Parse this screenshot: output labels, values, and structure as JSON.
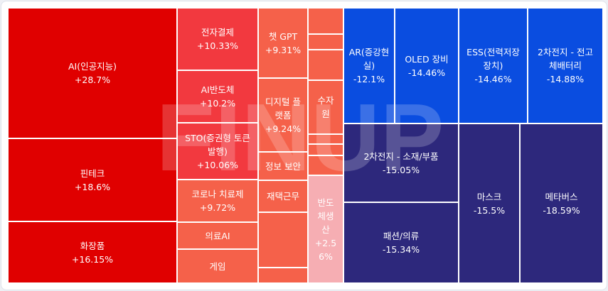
{
  "colors": {
    "up_strong": "#e00000",
    "up_mid": "#f2393f",
    "up_light": "#f5614a",
    "up_pale": "#f6aeb3",
    "down_blue": "#0a4de0",
    "down_navy": "#2d287c",
    "border": "#ffffff",
    "watermark": "#ffffff"
  },
  "watermark_text": "FINUP",
  "chart_data": {
    "type": "treemap",
    "title": "",
    "unit": "%",
    "tiles": [
      {
        "name": "AI(인공지능)",
        "value_label": "+28.7%",
        "value": 28.7
      },
      {
        "name": "핀테크",
        "value_label": "+18.6%",
        "value": 18.6
      },
      {
        "name": "화장품",
        "value_label": "+16.15%",
        "value": 16.15
      },
      {
        "name": "전자결제",
        "value_label": "+10.33%",
        "value": 10.33
      },
      {
        "name": "AI반도체",
        "value_label": "+10.2%",
        "value": 10.2
      },
      {
        "name": "STO(증권형 토큰\n발행)",
        "value_label": "+10.06%",
        "value": 10.06
      },
      {
        "name": "코로나 치료제",
        "value_label": "+9.72%",
        "value": 9.72
      },
      {
        "name": "의료AI",
        "value_label": "",
        "value": null
      },
      {
        "name": "게임",
        "value_label": "",
        "value": null
      },
      {
        "name": "챗 GPT",
        "value_label": "+9.31%",
        "value": 9.31
      },
      {
        "name": "디지털 플\n랫폼",
        "value_label": "+9.24%",
        "value": 9.24
      },
      {
        "name": "정보 보안",
        "value_label": "",
        "value": null
      },
      {
        "name": "재택근무",
        "value_label": "",
        "value": null
      },
      {
        "name": "수자\n원",
        "value_label": "",
        "value": null
      },
      {
        "name": "반도\n체생\n산",
        "value_label": "+2.5\n6%",
        "value": 2.56
      },
      {
        "name": "AR(증강현\n실)",
        "value_label": "-12.1%",
        "value": -12.1
      },
      {
        "name": "OLED 장비",
        "value_label": "-14.46%",
        "value": -14.46
      },
      {
        "name": "ESS(전력저장\n장치)",
        "value_label": "-14.46%",
        "value": -14.46
      },
      {
        "name": "2차전지 - 전고\n체배터리",
        "value_label": "-14.88%",
        "value": -14.88
      },
      {
        "name": "2차전지 - 소재/부품",
        "value_label": "-15.05%",
        "value": -15.05
      },
      {
        "name": "패션/의류",
        "value_label": "-15.34%",
        "value": -15.34
      },
      {
        "name": "마스크",
        "value_label": "-15.5%",
        "value": -15.5
      },
      {
        "name": "메타버스",
        "value_label": "-18.59%",
        "value": -18.59
      },
      {
        "name": "",
        "value_label": "",
        "value": null
      },
      {
        "name": "",
        "value_label": "",
        "value": null
      },
      {
        "name": "",
        "value_label": "",
        "value": null
      },
      {
        "name": "",
        "value_label": "",
        "value": null
      },
      {
        "name": "",
        "value_label": "",
        "value": null
      },
      {
        "name": "",
        "value_label": "",
        "value": null
      },
      {
        "name": "",
        "value_label": "",
        "value": null
      },
      {
        "name": "",
        "value_label": "",
        "value": null
      },
      {
        "name": "",
        "value_label": "",
        "value": null
      },
      {
        "name": "",
        "value_label": "",
        "value": null
      },
      {
        "name": "",
        "value_label": "",
        "value": null
      }
    ]
  }
}
